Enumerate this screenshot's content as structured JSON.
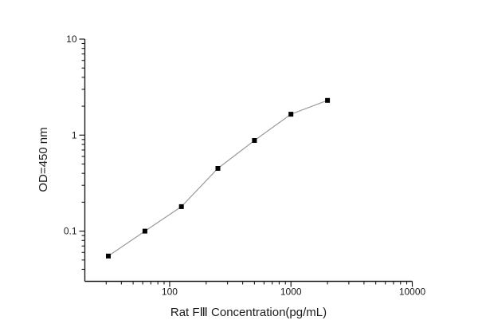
{
  "window": {
    "background_color": "#ffffff",
    "axis_color": "#1c1c1c",
    "tick_label_color": "#1a1a1a"
  },
  "chart_data": {
    "type": "line",
    "title": "",
    "xlabel": "Rat FⅢ Concentration(pg/mL)",
    "ylabel": "OD=450 nm",
    "x_scale": "log",
    "y_scale": "log",
    "xlim": [
      20,
      10000
    ],
    "ylim": [
      0.03,
      10
    ],
    "x_major_ticks": [
      100,
      1000,
      10000
    ],
    "x_major_tick_labels": [
      "100",
      "1000",
      "10000"
    ],
    "y_major_ticks": [
      0.1,
      1,
      10
    ],
    "y_major_tick_labels": [
      "0.1",
      "1",
      "10"
    ],
    "grid": false,
    "legend": "none",
    "spines": [
      "left",
      "bottom"
    ],
    "series": [
      {
        "name": "standard-curve",
        "marker": "square",
        "marker_size": 6,
        "marker_color": "#000000",
        "line_color": "#9b9b9b",
        "x": [
          31.25,
          62.5,
          125,
          250,
          500,
          1000,
          2000
        ],
        "y": [
          0.055,
          0.1,
          0.18,
          0.45,
          0.88,
          1.65,
          2.3
        ]
      }
    ]
  }
}
